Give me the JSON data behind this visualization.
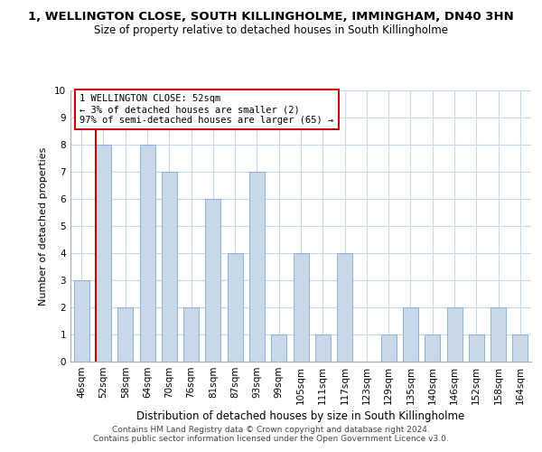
{
  "title1": "1, WELLINGTON CLOSE, SOUTH KILLINGHOLME, IMMINGHAM, DN40 3HN",
  "title2": "Size of property relative to detached houses in South Killingholme",
  "xlabel": "Distribution of detached houses by size in South Killingholme",
  "ylabel": "Number of detached properties",
  "footer1": "Contains HM Land Registry data © Crown copyright and database right 2024.",
  "footer2": "Contains public sector information licensed under the Open Government Licence v3.0.",
  "categories": [
    "46sqm",
    "52sqm",
    "58sqm",
    "64sqm",
    "70sqm",
    "76sqm",
    "81sqm",
    "87sqm",
    "93sqm",
    "99sqm",
    "105sqm",
    "111sqm",
    "117sqm",
    "123sqm",
    "129sqm",
    "135sqm",
    "140sqm",
    "146sqm",
    "152sqm",
    "158sqm",
    "164sqm"
  ],
  "values": [
    3,
    8,
    2,
    8,
    7,
    2,
    6,
    4,
    7,
    1,
    4,
    1,
    4,
    0,
    1,
    2,
    1,
    2,
    1,
    2,
    1
  ],
  "bar_color": "#c8d8ea",
  "bar_edge_color": "#7aadcf",
  "highlight_bar_index": 1,
  "subject_line_color": "#cc0000",
  "annotation_title": "1 WELLINGTON CLOSE: 52sqm",
  "annotation_line1": "← 3% of detached houses are smaller (2)",
  "annotation_line2": "97% of semi-detached houses are larger (65) →",
  "annotation_box_color": "#ffffff",
  "annotation_box_edge_color": "#cc0000",
  "ylim": [
    0,
    10
  ],
  "yticks": [
    0,
    1,
    2,
    3,
    4,
    5,
    6,
    7,
    8,
    9,
    10
  ],
  "bg_color": "#ffffff",
  "grid_color": "#c8d8ea",
  "title1_fontsize": 9.5,
  "title2_fontsize": 8.5,
  "xlabel_fontsize": 8.5,
  "ylabel_fontsize": 8,
  "tick_fontsize": 7.5,
  "annotation_fontsize": 7.5,
  "footer_fontsize": 6.5
}
